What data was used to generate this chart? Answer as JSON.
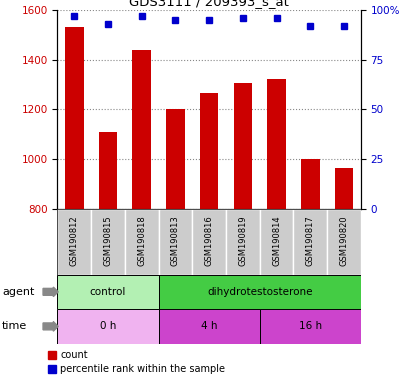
{
  "title": "GDS3111 / 209393_s_at",
  "samples": [
    "GSM190812",
    "GSM190815",
    "GSM190818",
    "GSM190813",
    "GSM190816",
    "GSM190819",
    "GSM190814",
    "GSM190817",
    "GSM190820"
  ],
  "counts": [
    1530,
    1110,
    1440,
    1200,
    1265,
    1305,
    1320,
    1000,
    965
  ],
  "percentiles": [
    97,
    93,
    97,
    95,
    95,
    96,
    96,
    92,
    92
  ],
  "ylim_left": [
    800,
    1600
  ],
  "ylim_right": [
    0,
    100
  ],
  "yticks_left": [
    800,
    1000,
    1200,
    1400,
    1600
  ],
  "yticks_right": [
    0,
    25,
    50,
    75,
    100
  ],
  "bar_color": "#cc0000",
  "dot_color": "#0000cc",
  "agent_labels": [
    {
      "label": "control",
      "span": [
        0,
        3
      ],
      "color": "#b3f0b3"
    },
    {
      "label": "dihydrotestosterone",
      "span": [
        3,
        9
      ],
      "color": "#44cc44"
    }
  ],
  "time_labels": [
    {
      "label": "0 h",
      "span": [
        0,
        3
      ],
      "color": "#f0b3f0"
    },
    {
      "label": "4 h",
      "span": [
        3,
        6
      ],
      "color": "#cc44cc"
    },
    {
      "label": "16 h",
      "span": [
        6,
        9
      ],
      "color": "#cc44cc"
    }
  ],
  "legend_count_label": "count",
  "legend_percentile_label": "percentile rank within the sample",
  "bar_width": 0.55,
  "grid_color": "#888888",
  "tick_label_color_left": "#cc0000",
  "tick_label_color_right": "#0000cc",
  "label_row_agent": "agent",
  "label_row_time": "time",
  "sample_bg_color": "#cccccc",
  "sample_sep_color": "#ffffff"
}
